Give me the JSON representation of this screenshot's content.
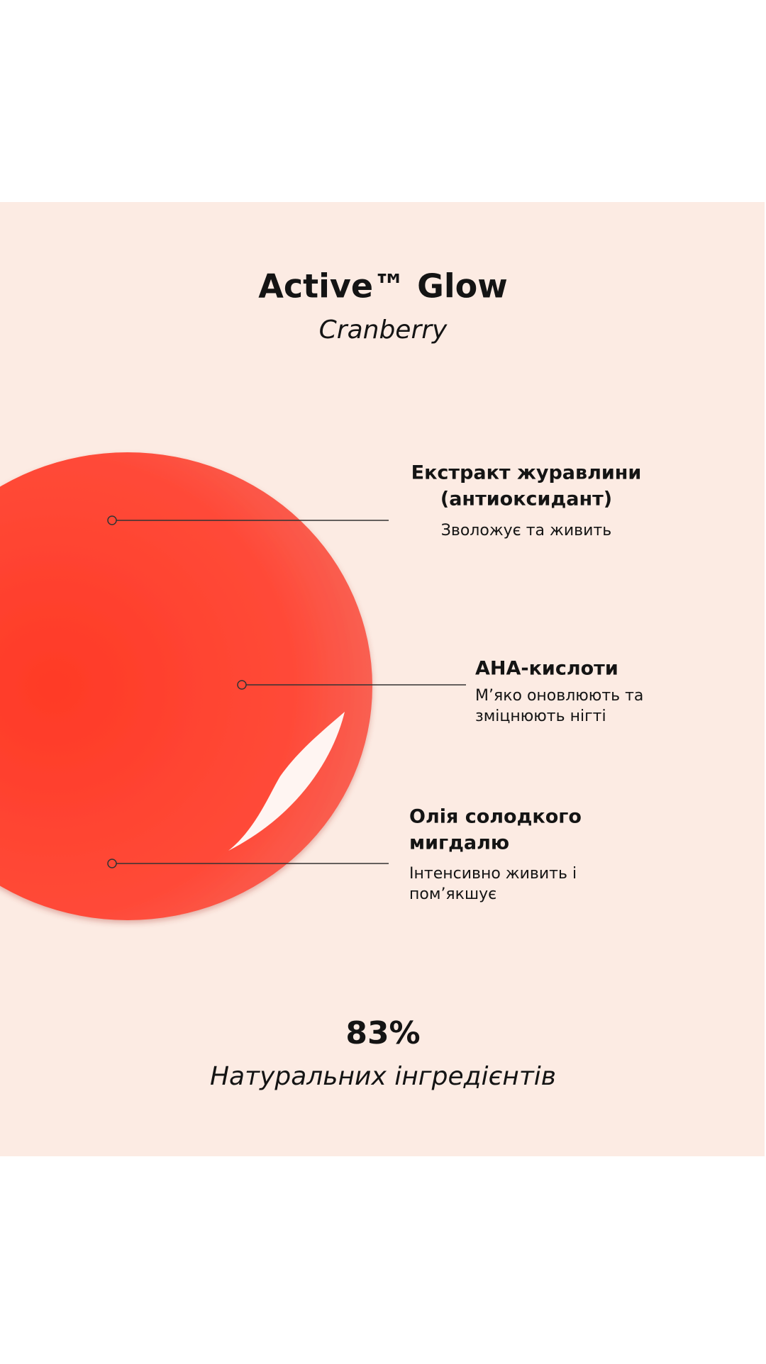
{
  "header": {
    "title": "Active™ Glow",
    "subtitle": "Cranberry"
  },
  "ingredients": [
    {
      "name": [
        "Екстракт журавлини",
        "(антиоксидант)"
      ],
      "description": [
        "Зволожує та живить"
      ]
    },
    {
      "name": [
        "AHA-кислоти"
      ],
      "description": [
        "М’яко оновлюють та",
        "зміцнюють нігті"
      ]
    },
    {
      "name": [
        "Олія солодкого",
        "мигдалю"
      ],
      "description": [
        "Інтенсивно живить і",
        "пом’якшує"
      ]
    }
  ],
  "stat": {
    "value": "83%",
    "label": "Натуральних інгредієнтів"
  }
}
